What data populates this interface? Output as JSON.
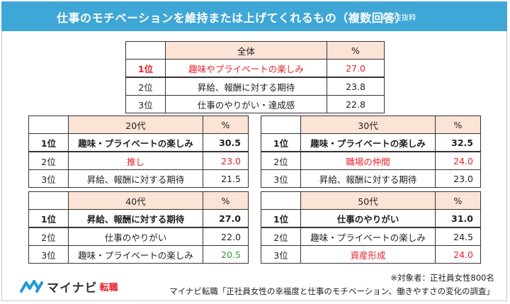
{
  "header": {
    "title": "仕事のモチベーションを維持または上げてくれるもの（複数回答）",
    "note": "※上位抜粋"
  },
  "colors": {
    "banner": "#3fa7d6",
    "header_fill": "#fbe3d6",
    "highlight_red": "#e8202a",
    "highlight_green": "#2e9a3a"
  },
  "chart_data": [
    {
      "type": "table",
      "title": "全体",
      "unit": "%",
      "rows": [
        {
          "rank": "1位",
          "item": "趣味やプライベートの楽しみ",
          "value": "27.0"
        },
        {
          "rank": "2位",
          "item": "昇給、報酬に対する期待",
          "value": "23.8"
        },
        {
          "rank": "3位",
          "item": "仕事のやりがい・達成感",
          "value": "22.8"
        }
      ]
    },
    {
      "type": "table",
      "title": "20代",
      "unit": "%",
      "rows": [
        {
          "rank": "1位",
          "item": "趣味・プライベートの楽しみ",
          "value": "30.5"
        },
        {
          "rank": "2位",
          "item": "推し",
          "value": "23.0"
        },
        {
          "rank": "3位",
          "item": "昇給、報酬に対する期待",
          "value": "21.5"
        }
      ]
    },
    {
      "type": "table",
      "title": "30代",
      "unit": "%",
      "rows": [
        {
          "rank": "1位",
          "item": "趣味・プライベートの楽しみ",
          "value": "32.5"
        },
        {
          "rank": "2位",
          "item": "職場の仲間",
          "value": "24.0"
        },
        {
          "rank": "3位",
          "item": "昇給、報酬に対する期待",
          "value": "23.0"
        }
      ]
    },
    {
      "type": "table",
      "title": "40代",
      "unit": "%",
      "rows": [
        {
          "rank": "1位",
          "item": "昇給、報酬に対する期待",
          "value": "27.0"
        },
        {
          "rank": "2位",
          "item": "仕事のやりがい",
          "value": "22.0"
        },
        {
          "rank": "3位",
          "item": "趣味・プライベートの楽しみ",
          "value": "20.5"
        }
      ]
    },
    {
      "type": "table",
      "title": "50代",
      "unit": "%",
      "rows": [
        {
          "rank": "1位",
          "item": "仕事のやりがい",
          "value": "31.0"
        },
        {
          "rank": "2位",
          "item": "趣味・プライベートの楽しみ",
          "value": "24.5"
        },
        {
          "rank": "3位",
          "item": "資産形成",
          "value": "24.0"
        }
      ]
    }
  ],
  "footer": {
    "subject": "※対象者：正社員女性800名",
    "source": "マイナビ転職「正社員女性の幸福度と仕事のモチベーション、働きやすさの変化の調査」"
  },
  "logo": {
    "name": "マイナビ",
    "sub": "転職",
    "icon": "mynavi-logo-icon"
  }
}
